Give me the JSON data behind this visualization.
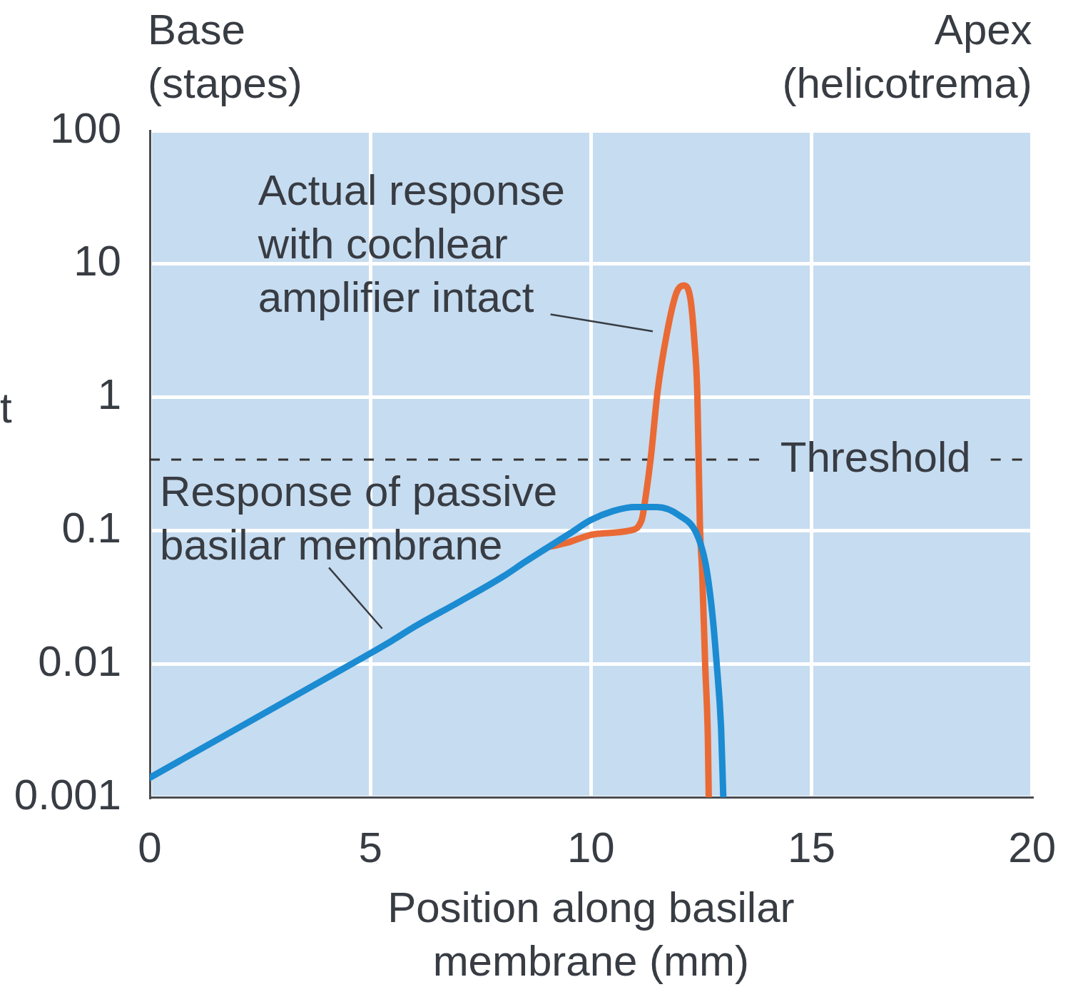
{
  "chart_data": {
    "type": "line",
    "xlabel": "Position along basilar membrane (mm)",
    "ylabel": "t",
    "xlim": [
      0,
      20
    ],
    "xticks": [
      0,
      5,
      10,
      15,
      20
    ],
    "ylim": [
      0.001,
      100
    ],
    "yticks": [
      0.001,
      0.01,
      0.1,
      1,
      10,
      100
    ],
    "log": "y",
    "grid": true,
    "marker": "none",
    "line_style": "solid",
    "series": [
      {
        "color": "#1b8bd2",
        "x": [
          0,
          2,
          4,
          5,
          5.5,
          6,
          7,
          8,
          8.5,
          9,
          9.5,
          10,
          10.5,
          11,
          11.5,
          12,
          12.4,
          12.6,
          12.75,
          12.85,
          12.95,
          13
        ],
        "values": [
          0.0014,
          0.0033,
          0.0078,
          0.012,
          0.015,
          0.019,
          0.029,
          0.045,
          0.058,
          0.074,
          0.094,
          0.12,
          0.14,
          0.15,
          0.15,
          0.13,
          0.094,
          0.056,
          0.024,
          0.01,
          0.0033,
          0.001
        ]
      },
      {
        "color": "#ea6a35",
        "x": [
          9.1,
          9.46,
          10.09,
          10.88,
          11.15,
          11.23,
          11.36,
          11.51,
          11.72,
          11.94,
          12.1,
          12.25,
          12.35,
          12.41,
          12.44,
          12.47,
          12.52,
          12.59,
          12.65,
          12.67
        ],
        "values": [
          0.076,
          0.081,
          0.094,
          0.1,
          0.12,
          0.17,
          0.36,
          1.1,
          3,
          6.1,
          6.9,
          5.6,
          2.5,
          1.1,
          0.36,
          0.11,
          0.05,
          0.0097,
          0.0028,
          0.001
        ]
      }
    ],
    "ref_lines": [
      {
        "axis": "y",
        "value": 0.34,
        "label": "Threshold",
        "line_style": "dashed",
        "color": "#333333"
      }
    ],
    "annotations": [
      "Base (stapes)",
      "Apex (helicotrema)",
      {
        "text": "Actual response with cochlear amplifier intact",
        "x": 11.72,
        "y": 3
      },
      {
        "text": "Response of passive basilar membrane",
        "x": 5.5,
        "y": 0.015
      }
    ]
  }
}
